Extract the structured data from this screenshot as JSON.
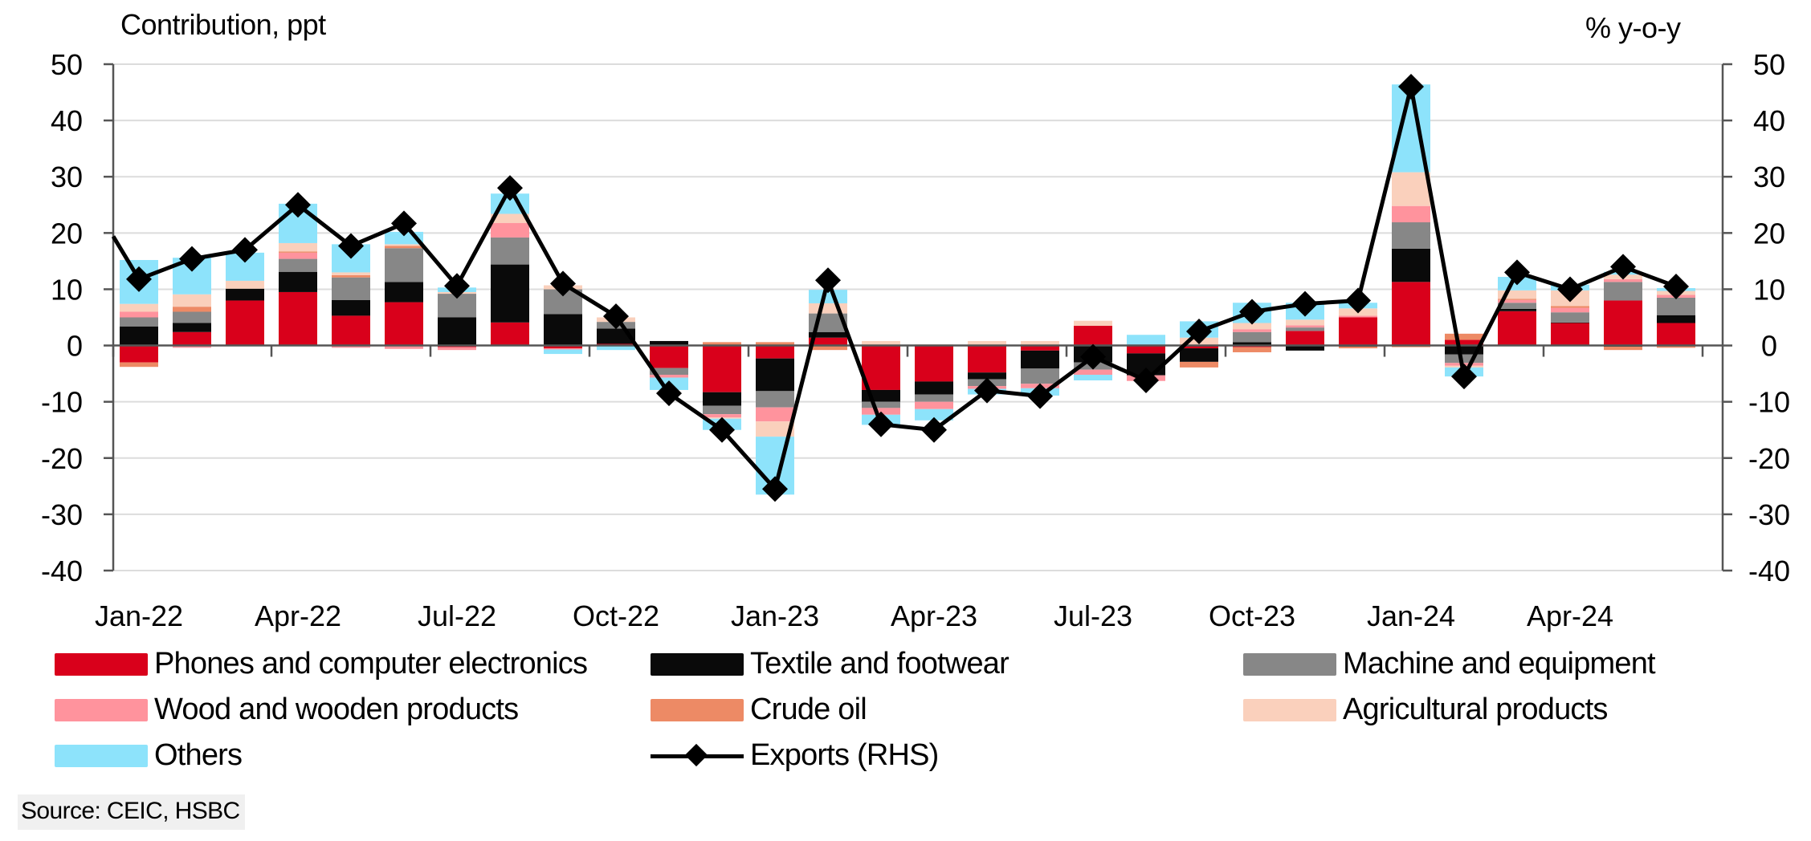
{
  "chart_data": {
    "type": "bar",
    "subtype": "stacked-bar-with-line",
    "left_axis_title": "Contribution, ppt",
    "right_axis_title": "% y-o-y",
    "ylim": [
      -40,
      50
    ],
    "y2lim": [
      -40,
      50
    ],
    "yticks": [
      50,
      40,
      30,
      20,
      10,
      0,
      -10,
      -20,
      -30,
      -40
    ],
    "grid": true,
    "categories": [
      "Jan-22",
      "Feb-22",
      "Mar-22",
      "Apr-22",
      "May-22",
      "Jun-22",
      "Jul-22",
      "Aug-22",
      "Sep-22",
      "Oct-22",
      "Nov-22",
      "Dec-22",
      "Jan-23",
      "Feb-23",
      "Mar-23",
      "Apr-23",
      "May-23",
      "Jun-23",
      "Jul-23",
      "Aug-23",
      "Sep-23",
      "Oct-23",
      "Nov-23",
      "Dec-23",
      "Jan-24",
      "Feb-24",
      "Mar-24",
      "Apr-24",
      "May-24",
      "Jun-24"
    ],
    "xtick_labels": [
      "Jan-22",
      "Apr-22",
      "Jul-22",
      "Oct-22",
      "Jan-23",
      "Apr-23",
      "Jul-23",
      "Oct-23",
      "Jan-24",
      "Apr-24"
    ],
    "series": [
      {
        "name": "Phones and computer electronics",
        "color": "#d9001b",
        "axis": "left",
        "kind": "bar",
        "values": [
          -3.0,
          2.4,
          8.0,
          9.5,
          5.3,
          7.7,
          -0.3,
          4.1,
          -0.5,
          0.3,
          -4.0,
          -8.3,
          -2.3,
          1.4,
          -7.9,
          -6.4,
          -4.8,
          -0.9,
          3.5,
          -1.4,
          -0.5,
          -0.3,
          2.6,
          5.0,
          11.3,
          1.0,
          6.1,
          4.0,
          8.0,
          4.0
        ]
      },
      {
        "name": "Textile and footwear",
        "color": "#0a0a0a",
        "axis": "left",
        "kind": "bar",
        "values": [
          3.4,
          1.6,
          2.1,
          3.6,
          2.8,
          3.6,
          5.0,
          10.3,
          5.6,
          2.7,
          0.8,
          -2.4,
          -5.8,
          1.0,
          -2.1,
          -2.3,
          -1.2,
          -3.2,
          -3.0,
          -3.9,
          -2.4,
          0.6,
          -0.9,
          -0.2,
          5.9,
          -1.6,
          0.4,
          0.1,
          -0.2,
          1.4
        ]
      },
      {
        "name": "Machine and equipment",
        "color": "#878787",
        "axis": "left",
        "kind": "bar",
        "values": [
          1.6,
          2.0,
          0.0,
          2.3,
          4.0,
          6.0,
          4.2,
          4.8,
          4.4,
          1.2,
          -1.2,
          -1.5,
          -2.9,
          3.3,
          -1.1,
          -1.3,
          -1.2,
          -2.7,
          -1.3,
          0.0,
          0.0,
          1.8,
          0.6,
          0.0,
          4.7,
          -1.5,
          1.1,
          1.8,
          3.3,
          3.1
        ]
      },
      {
        "name": "Wood and wooden products",
        "color": "#ff939d",
        "axis": "left",
        "kind": "bar",
        "values": [
          1.0,
          -0.4,
          0.0,
          1.1,
          -0.4,
          -0.6,
          -0.5,
          2.6,
          -0.2,
          0.0,
          -0.5,
          -0.6,
          -2.5,
          0.0,
          -1.2,
          -1.3,
          -0.5,
          -0.8,
          -0.9,
          -1.0,
          0.0,
          0.5,
          0.4,
          0.3,
          2.9,
          -0.5,
          0.5,
          0.8,
          0.5,
          0.5
        ]
      },
      {
        "name": "Crude oil",
        "color": "#ed8a65",
        "axis": "left",
        "kind": "bar",
        "values": [
          -0.8,
          0.9,
          0.0,
          0.2,
          0.4,
          0.4,
          0.0,
          0.0,
          0.0,
          0.0,
          0.0,
          0.6,
          0.6,
          -0.8,
          0.0,
          0.0,
          0.0,
          0.0,
          0.0,
          0.0,
          -1.0,
          -0.9,
          0.0,
          -0.3,
          -0.3,
          1.1,
          0.2,
          0.3,
          -0.6,
          -0.4
        ]
      },
      {
        "name": "Agricultural products",
        "color": "#fad0bc",
        "axis": "left",
        "kind": "bar",
        "values": [
          1.4,
          2.2,
          1.4,
          1.5,
          0.5,
          0.3,
          0.3,
          1.6,
          0.7,
          0.8,
          0.0,
          -0.2,
          -2.7,
          1.8,
          0.8,
          0.2,
          0.8,
          0.8,
          0.9,
          0.0,
          1.4,
          1.1,
          1.0,
          1.3,
          6.0,
          -0.3,
          1.5,
          2.8,
          0.8,
          0.7
        ]
      },
      {
        "name": "Others",
        "color": "#8de3fb",
        "axis": "left",
        "kind": "bar",
        "values": [
          7.8,
          6.5,
          5.0,
          7.0,
          5.0,
          2.2,
          0.8,
          3.6,
          -0.8,
          -0.8,
          -2.2,
          -2.0,
          -10.3,
          2.4,
          -1.8,
          -2.0,
          -1.0,
          -1.3,
          -1.0,
          1.9,
          2.9,
          3.6,
          3.0,
          1.0,
          15.6,
          -1.6,
          2.4,
          1.0,
          0.5,
          0.5
        ]
      },
      {
        "name": "Exports (RHS)",
        "color": "#000000",
        "axis": "right",
        "kind": "line-diamond",
        "start_value": 19.4,
        "values": [
          11.8,
          15.4,
          17.0,
          25.0,
          17.7,
          21.7,
          10.6,
          28.0,
          11.0,
          5.2,
          -8.5,
          -15.0,
          -25.5,
          11.6,
          -14.0,
          -15.0,
          -8.0,
          -9.0,
          -2.0,
          -6.2,
          2.5,
          6.0,
          7.4,
          8.0,
          46.0,
          -5.5,
          13.0,
          10.0,
          14.0,
          10.5
        ]
      }
    ],
    "legend": [
      {
        "label": "Phones and computer electronics",
        "color": "#d9001b",
        "kind": "box"
      },
      {
        "label": "Textile and footwear",
        "color": "#0a0a0a",
        "kind": "box"
      },
      {
        "label": "Machine and equipment",
        "color": "#878787",
        "kind": "box"
      },
      {
        "label": "Wood and wooden products",
        "color": "#ff939d",
        "kind": "box"
      },
      {
        "label": "Crude oil",
        "color": "#ed8a65",
        "kind": "box"
      },
      {
        "label": "Agricultural products",
        "color": "#fad0bc",
        "kind": "box"
      },
      {
        "label": "Others",
        "color": "#8de3fb",
        "kind": "box"
      },
      {
        "label": "Exports (RHS)",
        "color": "#000000",
        "kind": "line"
      }
    ],
    "legend_position": "bottom",
    "source": "Source: CEIC, HSBC"
  }
}
